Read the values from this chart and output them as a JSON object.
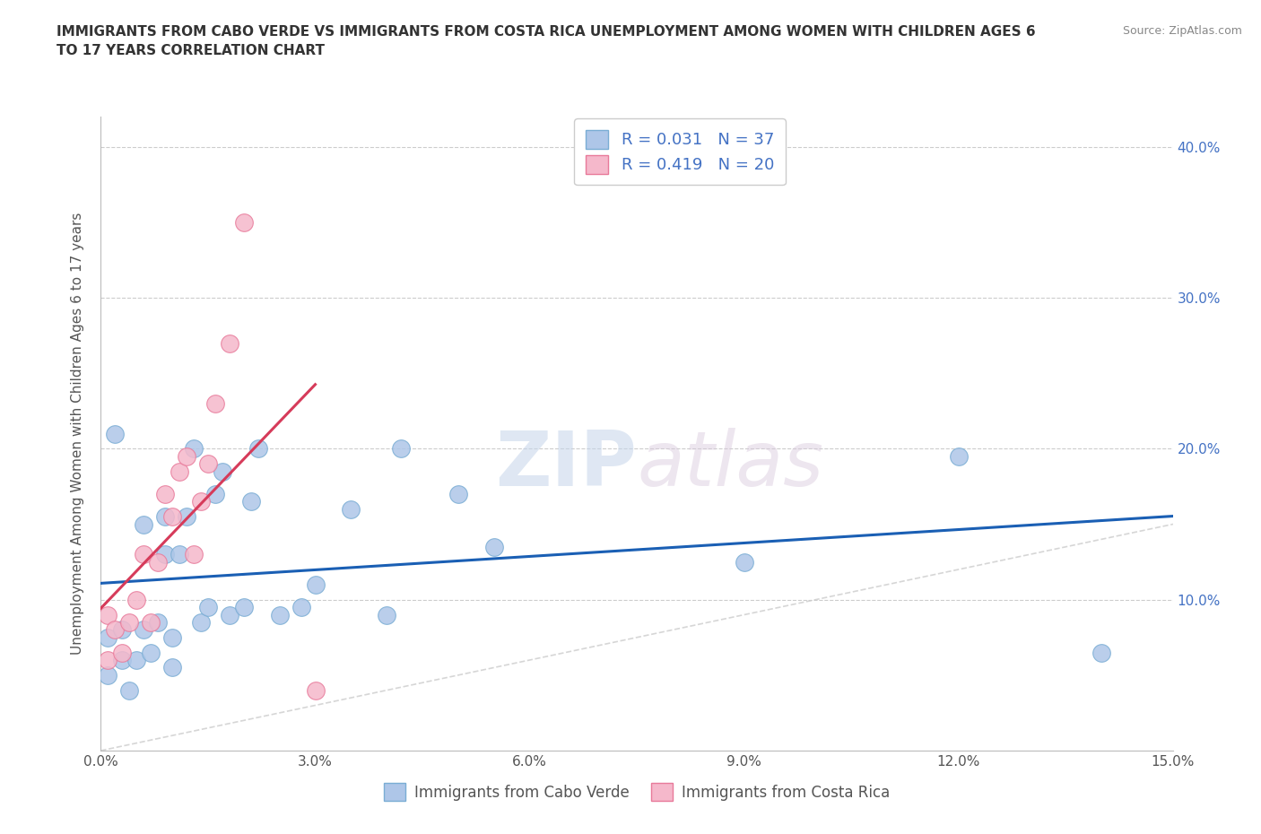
{
  "title": "IMMIGRANTS FROM CABO VERDE VS IMMIGRANTS FROM COSTA RICA UNEMPLOYMENT AMONG WOMEN WITH CHILDREN AGES 6\nTO 17 YEARS CORRELATION CHART",
  "source": "Source: ZipAtlas.com",
  "ylabel": "Unemployment Among Women with Children Ages 6 to 17 years",
  "xlim": [
    0.0,
    0.15
  ],
  "ylim": [
    0.0,
    0.42
  ],
  "xticks": [
    0.0,
    0.03,
    0.06,
    0.09,
    0.12,
    0.15
  ],
  "xtick_labels": [
    "0.0%",
    "3.0%",
    "6.0%",
    "9.0%",
    "12.0%",
    "15.0%"
  ],
  "yticks": [
    0.0,
    0.1,
    0.2,
    0.3,
    0.4
  ],
  "ytick_labels_right": [
    "",
    "10.0%",
    "20.0%",
    "30.0%",
    "40.0%"
  ],
  "cabo_verde_color": "#aec6e8",
  "costa_rica_color": "#f5b8cb",
  "cabo_verde_edge": "#7aadd4",
  "costa_rica_edge": "#e87a9a",
  "trend_cabo_verde_color": "#1a5fb4",
  "trend_costa_rica_color": "#d63b5a",
  "R_cabo": 0.031,
  "N_cabo": 37,
  "R_costa": 0.419,
  "N_costa": 20,
  "legend_label_cabo": "Immigrants from Cabo Verde",
  "legend_label_costa": "Immigrants from Costa Rica",
  "watermark_zip": "ZIP",
  "watermark_atlas": "atlas",
  "cabo_verde_x": [
    0.001,
    0.001,
    0.002,
    0.003,
    0.003,
    0.004,
    0.005,
    0.006,
    0.006,
    0.007,
    0.008,
    0.009,
    0.009,
    0.01,
    0.01,
    0.011,
    0.012,
    0.013,
    0.014,
    0.015,
    0.016,
    0.017,
    0.018,
    0.02,
    0.021,
    0.022,
    0.025,
    0.028,
    0.03,
    0.035,
    0.04,
    0.042,
    0.05,
    0.055,
    0.09,
    0.12,
    0.14
  ],
  "cabo_verde_y": [
    0.05,
    0.075,
    0.21,
    0.06,
    0.08,
    0.04,
    0.06,
    0.08,
    0.15,
    0.065,
    0.085,
    0.13,
    0.155,
    0.055,
    0.075,
    0.13,
    0.155,
    0.2,
    0.085,
    0.095,
    0.17,
    0.185,
    0.09,
    0.095,
    0.165,
    0.2,
    0.09,
    0.095,
    0.11,
    0.16,
    0.09,
    0.2,
    0.17,
    0.135,
    0.125,
    0.195,
    0.065
  ],
  "costa_rica_x": [
    0.001,
    0.001,
    0.002,
    0.003,
    0.004,
    0.005,
    0.006,
    0.007,
    0.008,
    0.009,
    0.01,
    0.011,
    0.012,
    0.013,
    0.014,
    0.015,
    0.016,
    0.018,
    0.02,
    0.03
  ],
  "costa_rica_y": [
    0.06,
    0.09,
    0.08,
    0.065,
    0.085,
    0.1,
    0.13,
    0.085,
    0.125,
    0.17,
    0.155,
    0.185,
    0.195,
    0.13,
    0.165,
    0.19,
    0.23,
    0.27,
    0.35,
    0.04
  ],
  "ref_line_x": [
    0.0,
    0.42
  ],
  "ref_line_y": [
    0.0,
    0.42
  ]
}
